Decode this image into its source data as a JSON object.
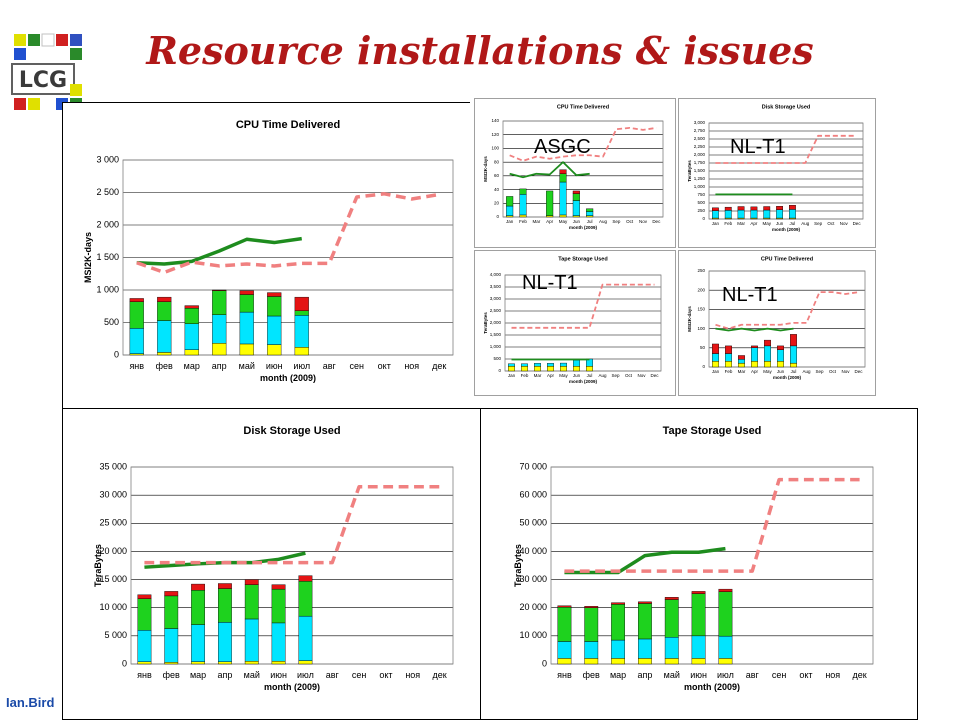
{
  "slide": {
    "title": "Resource installations & issues",
    "footer": "Ian.Bird"
  },
  "colors": {
    "title": "#b01818",
    "yellow": "#ffff00",
    "cyan": "#00e5ff",
    "green": "#1ed21e",
    "red": "#e41414",
    "line_green": "#1e8c1e",
    "line_dashed": "#f08080"
  },
  "chart_data": [
    {
      "id": "cpu",
      "type": "bar",
      "title": "CPU Time Delivered",
      "xlabel": "month (2009)",
      "ylabel": "MSI2K-days",
      "categories": [
        "янв",
        "фев",
        "мар",
        "апр",
        "май",
        "июн",
        "июл",
        "авг",
        "сен",
        "окт",
        "ноя",
        "дек"
      ],
      "ylim": [
        0,
        3000
      ],
      "yticks": [
        0,
        500,
        1000,
        1500,
        2000,
        2500,
        3000
      ],
      "ytick_labels": [
        "0",
        "500",
        "1 000",
        "1 500",
        "2 000",
        "2 500",
        "3 000"
      ],
      "stack_series": [
        {
          "color": "#ffff00",
          "values": [
            20,
            40,
            80,
            180,
            170,
            160,
            120,
            null,
            null,
            null,
            null,
            null
          ]
        },
        {
          "color": "#00e5ff",
          "values": [
            390,
            490,
            400,
            440,
            490,
            440,
            490,
            null,
            null,
            null,
            null,
            null
          ]
        },
        {
          "color": "#1ed21e",
          "values": [
            410,
            290,
            240,
            370,
            270,
            300,
            70,
            null,
            null,
            null,
            null,
            null
          ]
        },
        {
          "color": "#e41414",
          "values": [
            50,
            70,
            40,
            10,
            60,
            60,
            210,
            null,
            null,
            null,
            null,
            null
          ]
        }
      ],
      "lines": [
        {
          "style": "solid",
          "color": "#1e8c1e",
          "values": [
            1420,
            1400,
            1440,
            1600,
            1780,
            1730,
            1790,
            null,
            null,
            null,
            null,
            null
          ]
        },
        {
          "style": "dashed",
          "color": "#f08080",
          "values": [
            1420,
            1270,
            1430,
            1370,
            1400,
            1370,
            1410,
            1410,
            2430,
            2480,
            2400,
            2470
          ]
        }
      ]
    },
    {
      "id": "disk",
      "type": "bar",
      "title": "Disk Storage Used",
      "xlabel": "month (2009)",
      "ylabel": "TeraBytes",
      "categories": [
        "янв",
        "фев",
        "мар",
        "апр",
        "май",
        "июн",
        "июл",
        "авг",
        "сен",
        "окт",
        "ноя",
        "дек"
      ],
      "ylim": [
        0,
        35000
      ],
      "yticks": [
        0,
        5000,
        10000,
        15000,
        20000,
        25000,
        30000,
        35000
      ],
      "ytick_labels": [
        "0",
        "5 000",
        "10 000",
        "15 000",
        "20 000",
        "25 000",
        "30 000",
        "35 000"
      ],
      "stack_series": [
        {
          "color": "#ffff00",
          "values": [
            400,
            300,
            400,
            400,
            500,
            500,
            600,
            null,
            null,
            null,
            null,
            null
          ]
        },
        {
          "color": "#00e5ff",
          "values": [
            5600,
            6000,
            6600,
            7000,
            7500,
            6800,
            7900,
            null,
            null,
            null,
            null,
            null
          ]
        },
        {
          "color": "#1ed21e",
          "values": [
            5600,
            5800,
            6100,
            6000,
            6100,
            6000,
            6200,
            null,
            null,
            null,
            null,
            null
          ]
        },
        {
          "color": "#e41414",
          "values": [
            700,
            800,
            1100,
            900,
            900,
            800,
            1000,
            null,
            null,
            null,
            null,
            null
          ]
        }
      ],
      "lines": [
        {
          "style": "solid",
          "color": "#1e8c1e",
          "values": [
            17200,
            17500,
            17800,
            18000,
            18000,
            18600,
            19700,
            null,
            null,
            null,
            null,
            null
          ]
        },
        {
          "style": "dashed",
          "color": "#f08080",
          "values": [
            18000,
            18000,
            18000,
            18000,
            18000,
            18000,
            18000,
            18000,
            31500,
            31500,
            31500,
            31500
          ]
        }
      ]
    },
    {
      "id": "tape",
      "type": "bar",
      "title": "Tape Storage Used",
      "xlabel": "month (2009)",
      "ylabel": "TeraBytes",
      "categories": [
        "янв",
        "фев",
        "мар",
        "апр",
        "май",
        "июн",
        "июл",
        "авг",
        "сен",
        "окт",
        "ноя",
        "дек"
      ],
      "ylim": [
        0,
        70000
      ],
      "yticks": [
        0,
        10000,
        20000,
        30000,
        40000,
        50000,
        60000,
        70000
      ],
      "ytick_labels": [
        "0",
        "10 000",
        "20 000",
        "30 000",
        "40 000",
        "50 000",
        "60 000",
        "70 000"
      ],
      "stack_series": [
        {
          "color": "#ffff00",
          "values": [
            2000,
            2000,
            2000,
            2000,
            2000,
            2000,
            2000,
            null,
            null,
            null,
            null,
            null
          ]
        },
        {
          "color": "#00e5ff",
          "values": [
            6000,
            6000,
            6500,
            6900,
            7500,
            8000,
            7900,
            null,
            null,
            null,
            null,
            null
          ]
        },
        {
          "color": "#1ed21e",
          "values": [
            12200,
            12000,
            12700,
            12600,
            13400,
            15000,
            15800,
            null,
            null,
            null,
            null,
            null
          ]
        },
        {
          "color": "#e41414",
          "values": [
            500,
            500,
            600,
            600,
            800,
            800,
            900,
            null,
            null,
            null,
            null,
            null
          ]
        }
      ],
      "lines": [
        {
          "style": "solid",
          "color": "#1e8c1e",
          "values": [
            32500,
            32500,
            32500,
            38500,
            39700,
            39700,
            41000,
            null,
            null,
            null,
            null,
            null
          ]
        },
        {
          "style": "dashed",
          "color": "#f08080",
          "values": [
            33000,
            33000,
            33000,
            33000,
            33000,
            33000,
            33000,
            33000,
            65500,
            65500,
            65500,
            65500
          ]
        }
      ]
    },
    {
      "id": "asgc-cpu",
      "type": "bar",
      "site": "ASGC",
      "title": "CPU Time Delivered",
      "xlabel": "month (2009)",
      "ylabel": "MSI2K-days",
      "categories": [
        "Jan",
        "Feb",
        "Mar",
        "Apr",
        "May",
        "Jun",
        "Jul",
        "Aug",
        "Sep",
        "Oct",
        "Nov",
        "Dec"
      ],
      "ylim": [
        0,
        140
      ],
      "yticks": [
        0,
        20,
        40,
        60,
        80,
        100,
        120,
        140
      ],
      "ytick_labels": [
        "0",
        "20",
        "40",
        "60",
        "80",
        "100",
        "120",
        "140"
      ],
      "stack_series": [
        {
          "color": "#ffff00",
          "values": [
            2,
            3,
            0,
            2,
            3,
            2,
            2,
            null,
            null,
            null,
            null,
            null
          ]
        },
        {
          "color": "#00e5ff",
          "values": [
            14,
            30,
            0,
            0,
            48,
            22,
            6,
            null,
            null,
            null,
            null,
            null
          ]
        },
        {
          "color": "#1ed21e",
          "values": [
            14,
            8,
            0,
            36,
            12,
            10,
            4,
            null,
            null,
            null,
            null,
            null
          ]
        },
        {
          "color": "#e41414",
          "values": [
            0,
            0,
            0,
            0,
            6,
            4,
            0,
            null,
            null,
            null,
            null,
            null
          ]
        }
      ],
      "lines": [
        {
          "style": "solid",
          "color": "#1e8c1e",
          "values": [
            63,
            58,
            63,
            62,
            80,
            61,
            63,
            null,
            null,
            null,
            null,
            null
          ]
        },
        {
          "style": "dashed",
          "color": "#f08080",
          "values": [
            90,
            82,
            88,
            85,
            88,
            90,
            90,
            88,
            128,
            130,
            127,
            130
          ]
        }
      ]
    },
    {
      "id": "nl-disk",
      "type": "bar",
      "site": "NL-T1",
      "title": "Disk Storage Used",
      "xlabel": "month (2009)",
      "ylabel": "TeraBytes",
      "categories": [
        "Jan",
        "Feb",
        "Mar",
        "Apr",
        "May",
        "Jun",
        "Jul",
        "Aug",
        "Sep",
        "Oct",
        "Nov",
        "Dec"
      ],
      "ylim": [
        0,
        3000
      ],
      "yticks": [
        0,
        250,
        500,
        750,
        1000,
        1250,
        1500,
        1750,
        2000,
        2250,
        2500,
        2750,
        3000
      ],
      "ytick_labels": [
        "0",
        "250",
        "500",
        "750",
        "1,000",
        "1,250",
        "1,500",
        "1,750",
        "2,000",
        "2,250",
        "2,500",
        "2,750",
        "3,000"
      ],
      "stack_series": [
        {
          "color": "#ffff00",
          "values": [
            30,
            30,
            30,
            30,
            30,
            30,
            30,
            null,
            null,
            null,
            null,
            null
          ]
        },
        {
          "color": "#00e5ff",
          "values": [
            230,
            240,
            250,
            250,
            250,
            260,
            270,
            null,
            null,
            null,
            null,
            null
          ]
        },
        {
          "color": "#1ed21e",
          "values": [
            0,
            0,
            0,
            0,
            0,
            0,
            0,
            null,
            null,
            null,
            null,
            null
          ]
        },
        {
          "color": "#e41414",
          "values": [
            90,
            100,
            110,
            100,
            110,
            110,
            130,
            null,
            null,
            null,
            null,
            null
          ]
        }
      ],
      "lines": [
        {
          "style": "solid",
          "color": "#1e8c1e",
          "values": [
            770,
            770,
            770,
            770,
            770,
            770,
            770,
            null,
            null,
            null,
            null,
            null
          ]
        },
        {
          "style": "dashed",
          "color": "#f08080",
          "values": [
            1750,
            1750,
            1750,
            1750,
            1750,
            1750,
            1750,
            1750,
            2600,
            2600,
            2600,
            2600
          ]
        }
      ]
    },
    {
      "id": "nl-tape",
      "type": "bar",
      "site": "NL-T1",
      "title": "Tape Storage Used",
      "xlabel": "month (2009)",
      "ylabel": "TeraBytes",
      "categories": [
        "Jan",
        "Feb",
        "Mar",
        "Apr",
        "May",
        "Jun",
        "Jul",
        "Aug",
        "Sep",
        "Oct",
        "Nov",
        "Dec"
      ],
      "ylim": [
        0,
        4000
      ],
      "yticks": [
        0,
        500,
        1000,
        1500,
        2000,
        2500,
        3000,
        3500,
        4000
      ],
      "ytick_labels": [
        "0",
        "500",
        "1,000",
        "1,500",
        "2,000",
        "2,500",
        "3,000",
        "3,500",
        "4,000"
      ],
      "stack_series": [
        {
          "color": "#ffff00",
          "values": [
            200,
            200,
            200,
            200,
            200,
            200,
            200,
            null,
            null,
            null,
            null,
            null
          ]
        },
        {
          "color": "#00e5ff",
          "values": [
            100,
            100,
            120,
            120,
            130,
            250,
            300,
            null,
            null,
            null,
            null,
            null
          ]
        },
        {
          "color": "#1ed21e",
          "values": [
            0,
            0,
            0,
            0,
            0,
            0,
            0,
            null,
            null,
            null,
            null,
            null
          ]
        },
        {
          "color": "#e41414",
          "values": [
            0,
            0,
            0,
            0,
            0,
            0,
            0,
            null,
            null,
            null,
            null,
            null
          ]
        }
      ],
      "lines": [
        {
          "style": "solid",
          "color": "#1e8c1e",
          "values": [
            480,
            480,
            480,
            480,
            480,
            480,
            480,
            null,
            null,
            null,
            null,
            null
          ]
        },
        {
          "style": "dashed",
          "color": "#f08080",
          "values": [
            1800,
            1800,
            1800,
            1800,
            1800,
            1800,
            1800,
            3600,
            3600,
            3600,
            3600,
            3600
          ]
        }
      ]
    },
    {
      "id": "nl-cpu",
      "type": "bar",
      "site": "NL-T1",
      "title": "CPU Time Delivered",
      "xlabel": "month (2009)",
      "ylabel": "MSI2K-days",
      "categories": [
        "Jan",
        "Feb",
        "Mar",
        "Apr",
        "May",
        "Jun",
        "Jul",
        "Aug",
        "Sep",
        "Oct",
        "Nov",
        "Dec"
      ],
      "ylim": [
        0,
        250
      ],
      "yticks": [
        0,
        50,
        100,
        150,
        200,
        250
      ],
      "ytick_labels": [
        "0",
        "50",
        "100",
        "150",
        "200",
        "250"
      ],
      "stack_series": [
        {
          "color": "#ffff00",
          "values": [
            15,
            15,
            10,
            15,
            15,
            15,
            10,
            null,
            null,
            null,
            null,
            null
          ]
        },
        {
          "color": "#00e5ff",
          "values": [
            20,
            20,
            10,
            35,
            40,
            30,
            45,
            null,
            null,
            null,
            null,
            null
          ]
        },
        {
          "color": "#1ed21e",
          "values": [
            0,
            0,
            0,
            0,
            0,
            0,
            0,
            null,
            null,
            null,
            null,
            null
          ]
        },
        {
          "color": "#e41414",
          "values": [
            25,
            20,
            10,
            5,
            15,
            10,
            30,
            null,
            null,
            null,
            null,
            null
          ]
        }
      ],
      "lines": [
        {
          "style": "solid",
          "color": "#1e8c1e",
          "values": [
            100,
            95,
            100,
            95,
            100,
            95,
            100,
            null,
            null,
            null,
            null,
            null
          ]
        },
        {
          "style": "dashed",
          "color": "#f08080",
          "values": [
            110,
            100,
            110,
            110,
            110,
            110,
            115,
            115,
            195,
            195,
            190,
            195
          ]
        }
      ]
    }
  ]
}
